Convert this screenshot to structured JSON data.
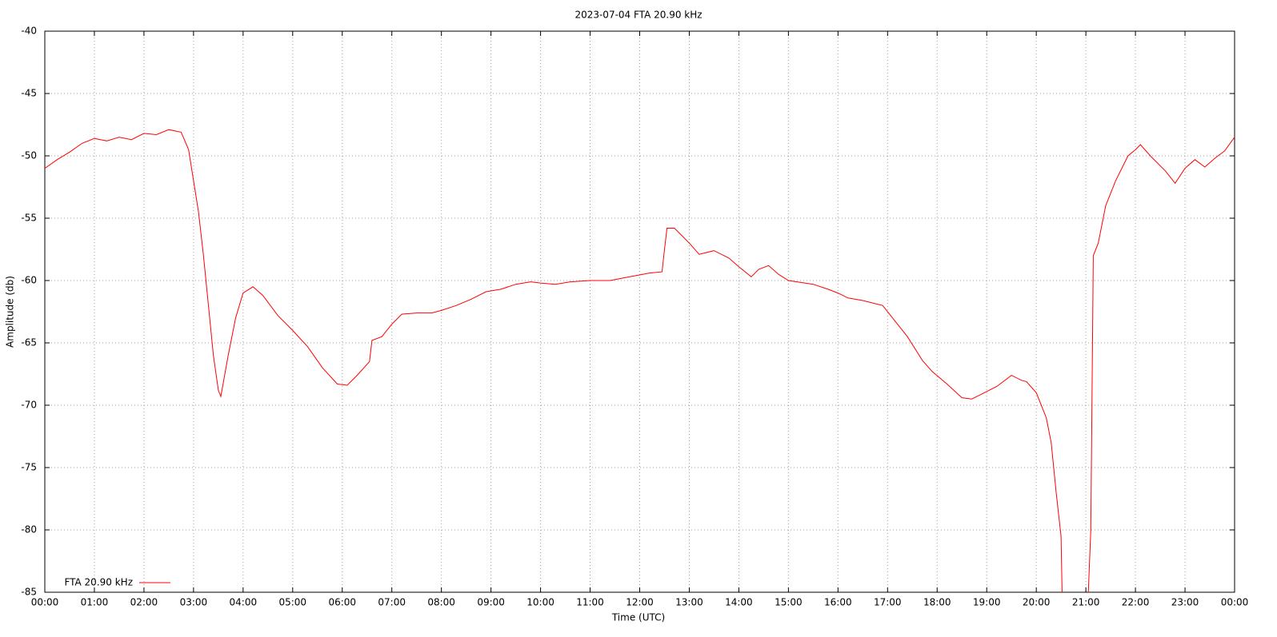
{
  "chart_data": {
    "type": "line",
    "title": "2023-07-04 FTA 20.90 kHz",
    "x_label": "Time (UTC)",
    "y_label": "Amplitude (db)",
    "legend": "bottom-left",
    "grid": true,
    "xlim": [
      0,
      24
    ],
    "xticks": [
      {
        "value": 0,
        "label": "00:00"
      },
      {
        "value": 1,
        "label": "01:00"
      },
      {
        "value": 2,
        "label": "02:00"
      },
      {
        "value": 3,
        "label": "03:00"
      },
      {
        "value": 4,
        "label": "04:00"
      },
      {
        "value": 5,
        "label": "05:00"
      },
      {
        "value": 6,
        "label": "06:00"
      },
      {
        "value": 7,
        "label": "07:00"
      },
      {
        "value": 8,
        "label": "08:00"
      },
      {
        "value": 9,
        "label": "09:00"
      },
      {
        "value": 10,
        "label": "10:00"
      },
      {
        "value": 11,
        "label": "11:00"
      },
      {
        "value": 12,
        "label": "12:00"
      },
      {
        "value": 13,
        "label": "13:00"
      },
      {
        "value": 14,
        "label": "14:00"
      },
      {
        "value": 15,
        "label": "15:00"
      },
      {
        "value": 16,
        "label": "16:00"
      },
      {
        "value": 17,
        "label": "17:00"
      },
      {
        "value": 18,
        "label": "18:00"
      },
      {
        "value": 19,
        "label": "19:00"
      },
      {
        "value": 20,
        "label": "20:00"
      },
      {
        "value": 21,
        "label": "21:00"
      },
      {
        "value": 22,
        "label": "22:00"
      },
      {
        "value": 23,
        "label": "23:00"
      },
      {
        "value": 24,
        "label": "00:00"
      }
    ],
    "ylim": [
      -85,
      -40
    ],
    "yticks": [
      -85,
      -80,
      -75,
      -70,
      -65,
      -60,
      -55,
      -50,
      -45,
      -40
    ],
    "x": [
      0,
      0.25,
      0.5,
      0.75,
      1,
      1.25,
      1.5,
      1.75,
      2,
      2.25,
      2.5,
      2.75,
      2.9,
      3,
      3.1,
      3.2,
      3.3,
      3.4,
      3.5,
      3.55,
      3.7,
      3.85,
      4,
      4.2,
      4.4,
      4.7,
      5,
      5.3,
      5.6,
      5.9,
      6.1,
      6.3,
      6.55,
      6.6,
      6.8,
      7,
      7.2,
      7.5,
      7.8,
      8,
      8.3,
      8.6,
      8.9,
      9.2,
      9.5,
      9.8,
      10,
      10.3,
      10.6,
      11,
      11.4,
      11.8,
      12.2,
      12.45,
      12.5,
      12.55,
      12.7,
      13,
      13.2,
      13.5,
      13.8,
      14,
      14.25,
      14.4,
      14.6,
      14.8,
      15,
      15.5,
      15.8,
      16,
      16.2,
      16.5,
      16.9,
      17.1,
      17.4,
      17.7,
      17.9,
      18.2,
      18.5,
      18.7,
      18.95,
      19.2,
      19.5,
      19.7,
      19.8,
      20,
      20.2,
      20.3,
      20.4,
      20.5,
      20.52,
      20.8,
      21.05,
      21.1,
      21.15,
      21.25,
      21.4,
      21.6,
      21.85,
      22,
      22.1,
      22.3,
      22.6,
      22.8,
      23,
      23.2,
      23.4,
      23.6,
      23.8,
      24
    ],
    "series": [
      {
        "name": "FTA 20.90 kHz",
        "color": "#ff0000",
        "values": [
          -51,
          -50.3,
          -49.7,
          -49,
          -48.6,
          -48.8,
          -48.5,
          -48.7,
          -48.2,
          -48.3,
          -47.9,
          -48.1,
          -49.5,
          -52,
          -54.5,
          -58,
          -62,
          -66,
          -68.8,
          -69.3,
          -66,
          -63,
          -61,
          -60.5,
          -61.2,
          -62.8,
          -64,
          -65.3,
          -67,
          -68.3,
          -68.4,
          -67.6,
          -66.5,
          -64.8,
          -64.5,
          -63.5,
          -62.7,
          -62.6,
          -62.6,
          -62.4,
          -62,
          -61.5,
          -60.9,
          -60.7,
          -60.3,
          -60.1,
          -60.2,
          -60.3,
          -60.1,
          -60,
          -60,
          -59.7,
          -59.4,
          -59.3,
          -57.5,
          -55.8,
          -55.8,
          -57,
          -57.9,
          -57.6,
          -58.2,
          -58.9,
          -59.7,
          -59.1,
          -58.8,
          -59.5,
          -60,
          -60.3,
          -60.7,
          -61,
          -61.4,
          -61.6,
          -62,
          -63,
          -64.5,
          -66.4,
          -67.3,
          -68.3,
          -69.4,
          -69.5,
          -69,
          -68.5,
          -67.6,
          -68,
          -68.1,
          -69,
          -71,
          -73,
          -77,
          -80.5,
          -85,
          null,
          -85,
          -80,
          -58,
          -57,
          -54,
          -52,
          -50,
          -49.5,
          -49.1,
          -50,
          -51.2,
          -52.2,
          -51,
          -50.3,
          -50.9,
          -50.2,
          -49.6,
          -48.5
        ]
      }
    ]
  }
}
